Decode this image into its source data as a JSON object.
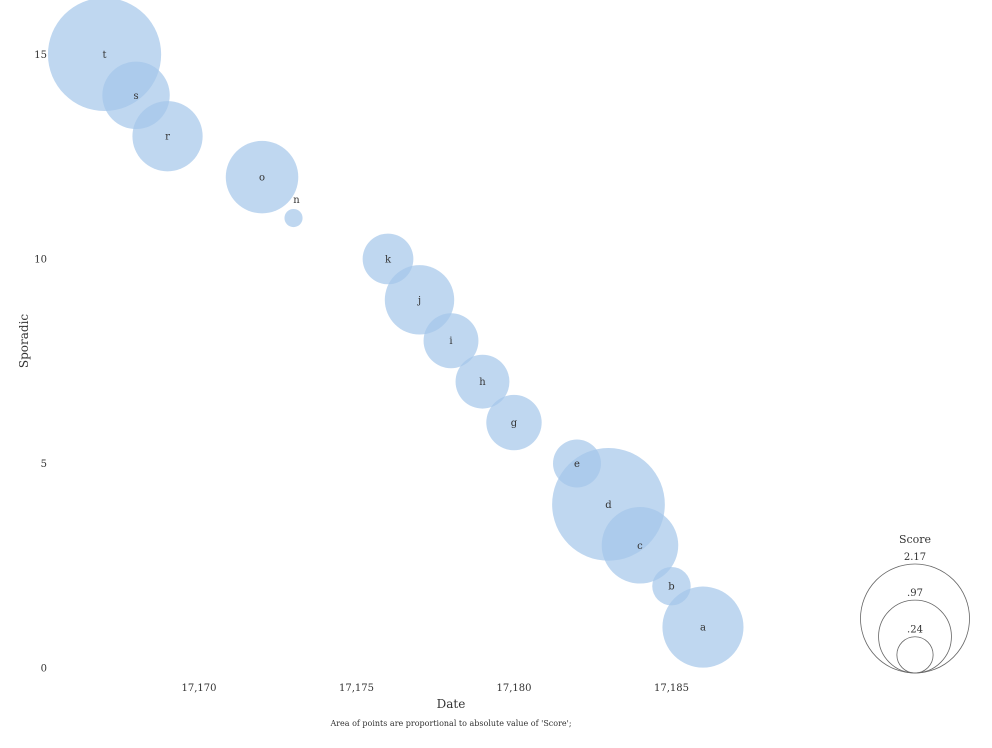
{
  "chart_data": {
    "type": "scatter",
    "xlabel": "Date",
    "ylabel": "Sporadic",
    "x_ticks": [
      {
        "value": 17170,
        "label": "17,170"
      },
      {
        "value": 17175,
        "label": "17,175"
      },
      {
        "value": 17180,
        "label": "17,180"
      },
      {
        "value": 17185,
        "label": "17,185"
      }
    ],
    "y_ticks": [
      {
        "value": 0,
        "label": "0"
      },
      {
        "value": 5,
        "label": "5"
      },
      {
        "value": 10,
        "label": "10"
      },
      {
        "value": 15,
        "label": "15"
      }
    ],
    "xlim": [
      17165.3,
      17190.7
    ],
    "ylim": [
      0,
      16.33
    ],
    "size_field": "Score",
    "point_color": "#a4c6ea",
    "points": [
      {
        "label": "a",
        "x": 17186,
        "y": 1,
        "score": 1.2
      },
      {
        "label": "b",
        "x": 17185,
        "y": 2,
        "score": 0.27
      },
      {
        "label": "c",
        "x": 17184,
        "y": 3,
        "score": 1.07
      },
      {
        "label": "d",
        "x": 17183,
        "y": 4,
        "score": 2.32
      },
      {
        "label": "e",
        "x": 17182,
        "y": 5,
        "score": 0.42
      },
      {
        "label": "g",
        "x": 17180,
        "y": 6,
        "score": 0.56
      },
      {
        "label": "h",
        "x": 17179,
        "y": 7,
        "score": 0.53
      },
      {
        "label": "i",
        "x": 17178,
        "y": 8,
        "score": 0.55
      },
      {
        "label": "j",
        "x": 17177,
        "y": 9,
        "score": 0.88
      },
      {
        "label": "k",
        "x": 17176,
        "y": 10,
        "score": 0.47
      },
      {
        "label": "n",
        "x": 17173,
        "y": 11,
        "score": 0.06
      },
      {
        "label": "o",
        "x": 17172,
        "y": 12,
        "score": 0.96
      },
      {
        "label": "r",
        "x": 17169,
        "y": 13,
        "score": 0.9
      },
      {
        "label": "s",
        "x": 17168,
        "y": 14,
        "score": 0.83
      },
      {
        "label": "t",
        "x": 17167,
        "y": 15,
        "score": 2.34
      }
    ],
    "legend": {
      "title": "Score",
      "placement": "bottom-right",
      "entries": [
        {
          "label": "2.17",
          "value": 2.17
        },
        {
          "label": ".97",
          "value": 0.97
        },
        {
          "label": ".24",
          "value": 0.24
        }
      ]
    },
    "note": "Area of points are proportional to absolute value of 'Score';"
  }
}
